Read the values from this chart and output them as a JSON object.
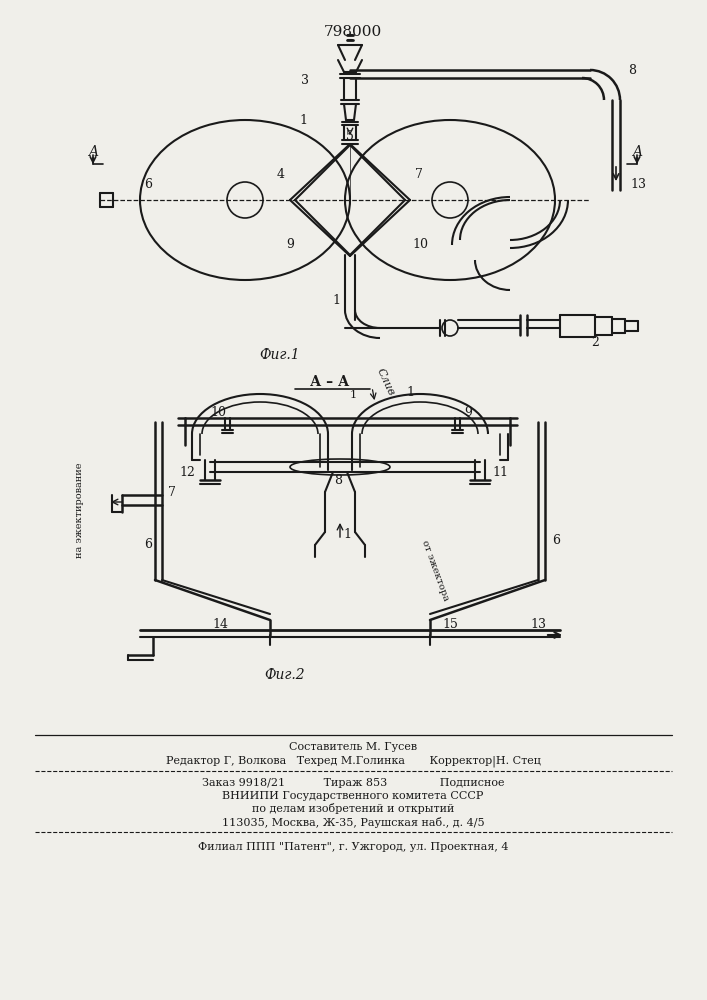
{
  "patent_number": "798000",
  "fig1_label": "Фиг.1",
  "fig2_label": "Фиг.2",
  "section_label": "А – А",
  "drain_label": "Слив",
  "ejector_label_left": "на эжектирование",
  "ejector_label_right": "от эжектора",
  "footer_line1": "Составитель М. Гусев",
  "footer_line2": "Редактор Г, Волкова   Техред М.Голинка       Корректор|Н. Стец",
  "footer_line3": "Заказ 9918/21           Тираж 853               Подписное",
  "footer_line4": "ВНИИПИ Государственного комитета СССР",
  "footer_line5": "по делам изобретений и открытий",
  "footer_line6": "113035, Москва, Ж-35, Раушская наб., д. 4/5",
  "footer_line7": "Филиал ППП \"Патент\", г. Ужгород, ул. Проектная, 4",
  "bg_color": "#f0efea",
  "line_color": "#1a1a1a",
  "text_color": "#1a1a1a"
}
